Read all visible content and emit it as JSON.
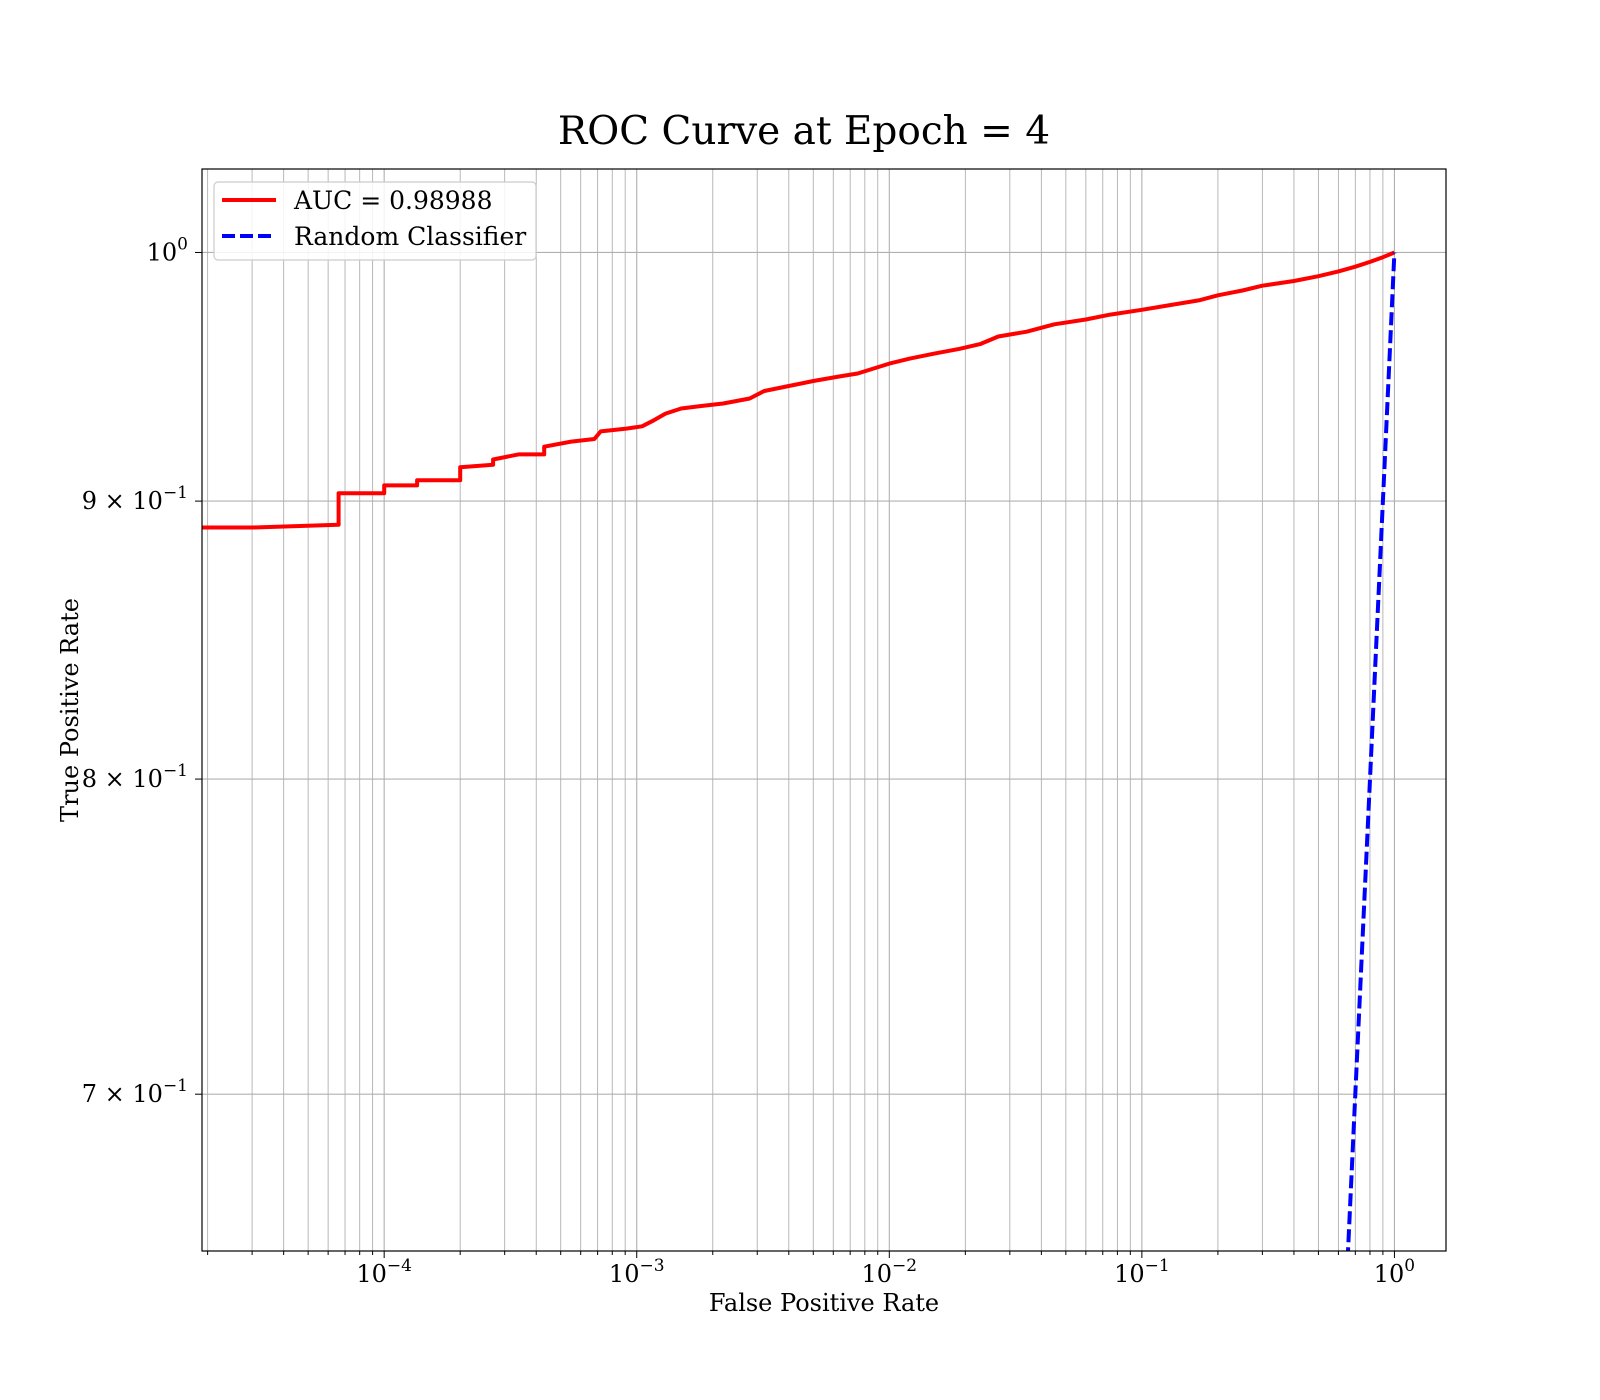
{
  "chart_data": {
    "type": "line",
    "title": "ROC Curve at Epoch = 4",
    "xlabel": "False Positive Rate",
    "ylabel": "True Positive Rate",
    "xscale": "log",
    "yscale": "log",
    "xlim": [
      1.9e-05,
      1.6
    ],
    "ylim": [
      0.655,
      1.036
    ],
    "grid": "both-major-minor",
    "legend_position": "top-left",
    "x_major_ticks": [
      0.0001,
      0.001,
      0.01,
      0.1,
      1
    ],
    "x_tick_labels": [
      {
        "base": "10",
        "exp": "−4"
      },
      {
        "base": "10",
        "exp": "−3"
      },
      {
        "base": "10",
        "exp": "−2"
      },
      {
        "base": "10",
        "exp": "−1"
      },
      {
        "base": "10",
        "exp": "0"
      }
    ],
    "y_ticks": [
      1.0,
      0.9,
      0.8,
      0.7
    ],
    "y_tick_labels": [
      {
        "mant": "",
        "base": "10",
        "exp": "0"
      },
      {
        "mant": "9 × ",
        "base": "10",
        "exp": "−1"
      },
      {
        "mant": "8 × ",
        "base": "10",
        "exp": "−1"
      },
      {
        "mant": "7 × ",
        "base": "10",
        "exp": "−1"
      }
    ],
    "series": [
      {
        "name": "AUC = 0.98988",
        "color": "#ff0000",
        "style": "solid",
        "x": [
          1.9e-05,
          3e-05,
          6.6e-05,
          6.6e-05,
          0.0001,
          0.0001,
          0.000135,
          0.000135,
          0.0002,
          0.0002,
          0.00027,
          0.00027,
          0.00034,
          0.00043,
          0.00043,
          0.00055,
          0.00068,
          0.00072,
          0.0009,
          0.00105,
          0.00115,
          0.0013,
          0.0015,
          0.0018,
          0.0022,
          0.0028,
          0.0032,
          0.004,
          0.005,
          0.0065,
          0.0075,
          0.01,
          0.012,
          0.015,
          0.019,
          0.023,
          0.027,
          0.035,
          0.045,
          0.06,
          0.075,
          0.1,
          0.13,
          0.17,
          0.2,
          0.25,
          0.3,
          0.4,
          0.5,
          0.6,
          0.7,
          0.8,
          0.9,
          1.0
        ],
        "y": [
          0.89,
          0.89,
          0.891,
          0.903,
          0.903,
          0.906,
          0.906,
          0.908,
          0.908,
          0.913,
          0.914,
          0.916,
          0.918,
          0.918,
          0.921,
          0.923,
          0.924,
          0.927,
          0.928,
          0.929,
          0.931,
          0.934,
          0.936,
          0.937,
          0.938,
          0.94,
          0.943,
          0.945,
          0.947,
          0.949,
          0.95,
          0.954,
          0.956,
          0.958,
          0.96,
          0.962,
          0.965,
          0.967,
          0.97,
          0.972,
          0.974,
          0.976,
          0.978,
          0.98,
          0.982,
          0.984,
          0.986,
          0.988,
          0.99,
          0.992,
          0.994,
          0.996,
          0.998,
          1.0
        ]
      },
      {
        "name": "Random Classifier",
        "color": "#0000ff",
        "style": "dashed",
        "x": [
          0.6,
          0.7,
          0.8,
          0.9,
          1.0
        ],
        "y": [
          0.6,
          0.7,
          0.8,
          0.9,
          1.0
        ]
      }
    ]
  }
}
